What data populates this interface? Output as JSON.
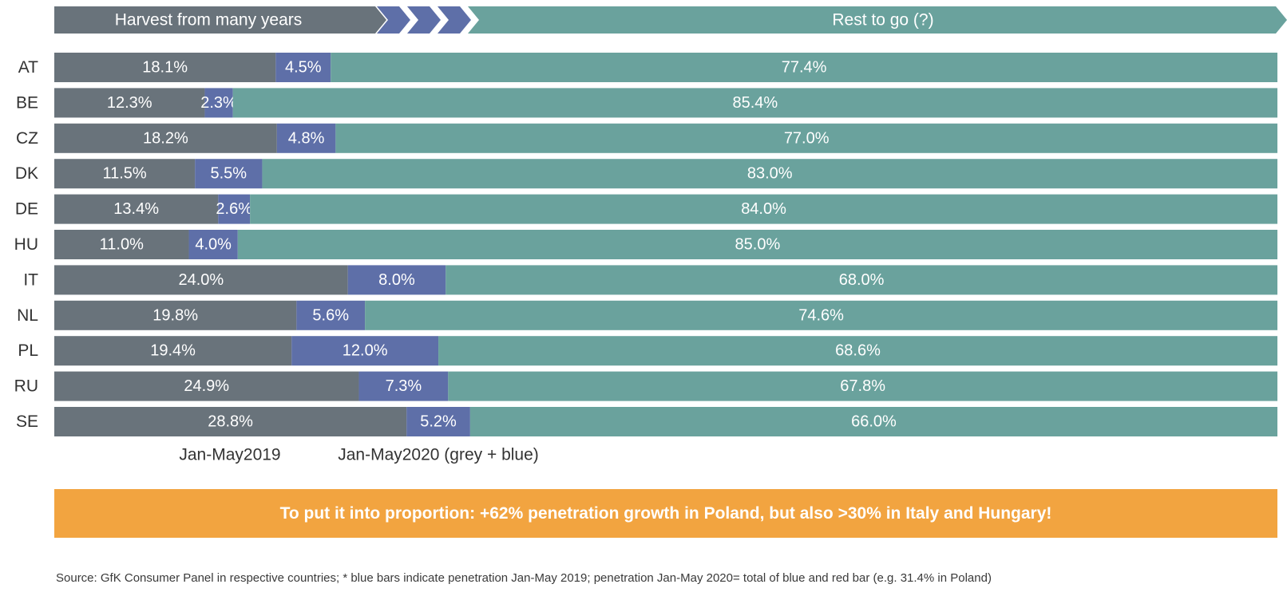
{
  "header": {
    "left_label": "Harvest from many years",
    "right_label": "Rest to go (?)"
  },
  "chart_data": {
    "type": "bar",
    "orientation": "horizontal",
    "stacked": true,
    "categories": [
      "AT",
      "BE",
      "CZ",
      "DK",
      "DE",
      "HU",
      "IT",
      "NL",
      "PL",
      "RU",
      "SE"
    ],
    "series": [
      {
        "name": "Jan-May2019",
        "color": "#69737b",
        "values": [
          18.1,
          12.3,
          18.2,
          11.5,
          13.4,
          11.0,
          24.0,
          19.8,
          19.4,
          24.9,
          28.8
        ],
        "labels": [
          "18.1%",
          "12.3%",
          "18.2%",
          "11.5%",
          "13.4%",
          "11.0%",
          "24.0%",
          "19.8%",
          "19.4%",
          "24.9%",
          "28.8%"
        ]
      },
      {
        "color": "#5e6fa8",
        "values": [
          4.5,
          2.3,
          4.8,
          5.5,
          2.6,
          4.0,
          8.0,
          5.6,
          12.0,
          7.3,
          5.2
        ],
        "labels": [
          "4.5%",
          "2.3%",
          "4.8%",
          "5.5%",
          "2.6%",
          "4.0%",
          "8.0%",
          "5.6%",
          "12.0%",
          "7.3%",
          "5.2%"
        ]
      },
      {
        "color": "#6aa29d",
        "values": [
          77.4,
          85.4,
          77.0,
          83.0,
          84.0,
          85.0,
          68.0,
          74.6,
          68.6,
          67.8,
          66.0
        ],
        "labels": [
          "77.4%",
          "85.4%",
          "77.0%",
          "83.0%",
          "84.0%",
          "85.0%",
          "68.0%",
          "74.6%",
          "68.6%",
          "67.8%",
          "66.0%"
        ]
      }
    ],
    "xlim": [
      0,
      100
    ],
    "bottom_labels": [
      "Jan-May2019",
      "Jan-May2020 (grey + blue)"
    ]
  },
  "callout": "To put it into proportion: +62% penetration growth in Poland, but also >30% in Italy and Hungary!",
  "source": "Source: GfK Consumer Panel in respective countries; * blue bars indicate penetration Jan-May 2019; penetration Jan-May 2020= total of blue and red bar (e.g. 31.4% in Poland)",
  "colors": {
    "grey": "#69737b",
    "blue": "#5e6fa8",
    "teal": "#6aa29d",
    "orange": "#f2a440"
  }
}
